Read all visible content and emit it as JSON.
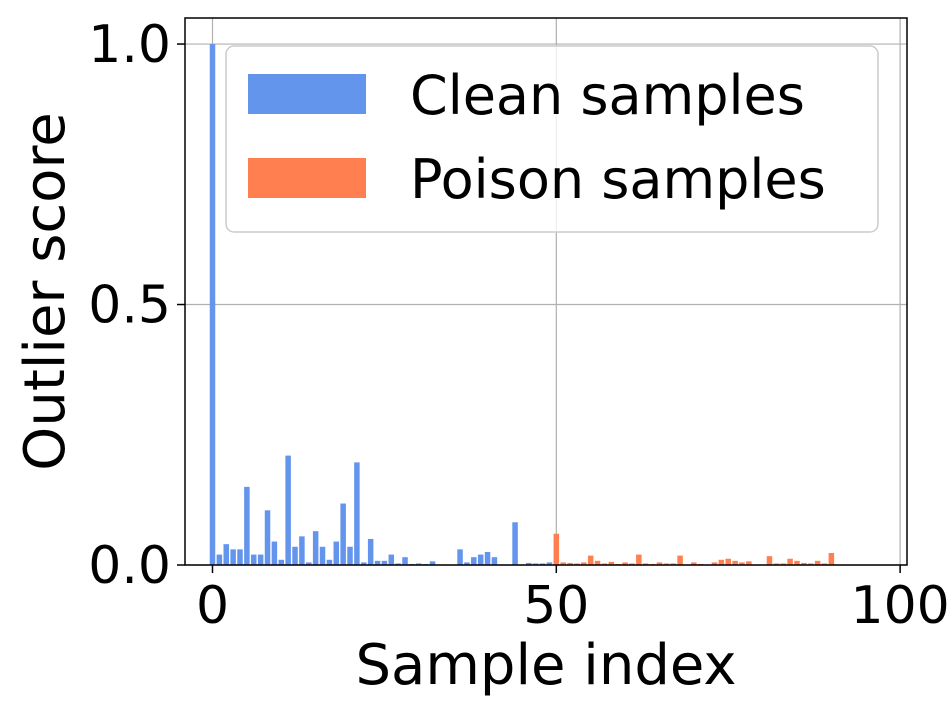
{
  "chart_data": {
    "type": "bar",
    "title": "",
    "xlabel": "Sample index",
    "ylabel": "Outlier score",
    "xlim": [
      -4,
      101
    ],
    "ylim": [
      0,
      1.05
    ],
    "xticks": [
      0,
      50,
      100
    ],
    "xtick_labels": [
      "0",
      "50",
      "100"
    ],
    "yticks": [
      0.0,
      0.5,
      1.0
    ],
    "ytick_labels": [
      "0.0",
      "0.5",
      "1.0"
    ],
    "grid": true,
    "legend_position": "top-right",
    "series": [
      {
        "name": "Clean samples",
        "color": "#6495ED",
        "x": [
          0,
          1,
          2,
          3,
          4,
          5,
          6,
          7,
          8,
          9,
          10,
          11,
          12,
          13,
          14,
          15,
          16,
          17,
          18,
          19,
          20,
          21,
          22,
          23,
          24,
          25,
          26,
          27,
          28,
          29,
          30,
          31,
          32,
          33,
          34,
          35,
          36,
          37,
          38,
          39,
          40,
          41,
          42,
          43,
          44,
          45,
          46,
          47,
          48,
          49
        ],
        "values": [
          1.0,
          0.02,
          0.04,
          0.03,
          0.03,
          0.15,
          0.02,
          0.02,
          0.105,
          0.045,
          0.01,
          0.21,
          0.035,
          0.055,
          0.005,
          0.065,
          0.035,
          0.01,
          0.045,
          0.118,
          0.035,
          0.197,
          0.005,
          0.05,
          0.008,
          0.008,
          0.02,
          0.003,
          0.015,
          0.002,
          0.003,
          0.002,
          0.007,
          0.0,
          0.0,
          0.0,
          0.03,
          0.005,
          0.015,
          0.02,
          0.025,
          0.015,
          0.0,
          0.0,
          0.082,
          0.0,
          0.004,
          0.003,
          0.003,
          0.005
        ]
      },
      {
        "name": "Poison samples",
        "color": "#FF7F50",
        "x": [
          50,
          51,
          52,
          53,
          54,
          55,
          56,
          57,
          58,
          59,
          60,
          61,
          62,
          63,
          64,
          65,
          66,
          67,
          68,
          69,
          70,
          71,
          72,
          73,
          74,
          75,
          76,
          77,
          78,
          79,
          80,
          81,
          82,
          83,
          84,
          85,
          86,
          87,
          88,
          89,
          90,
          91,
          92,
          93,
          94,
          95,
          96,
          97,
          98,
          99
        ],
        "values": [
          0.06,
          0.005,
          0.004,
          0.003,
          0.005,
          0.018,
          0.008,
          0.003,
          0.006,
          0.002,
          0.005,
          0.003,
          0.02,
          0.003,
          0.002,
          0.005,
          0.003,
          0.003,
          0.018,
          0.0,
          0.005,
          0.002,
          0.0,
          0.005,
          0.01,
          0.012,
          0.008,
          0.005,
          0.007,
          0.0,
          0.0,
          0.017,
          0.003,
          0.003,
          0.012,
          0.008,
          0.004,
          0.003,
          0.008,
          0.003,
          0.023,
          0.0,
          0.0,
          0.0,
          0.0,
          0.0,
          0.0,
          0.0,
          0.0,
          0.0
        ]
      }
    ]
  }
}
